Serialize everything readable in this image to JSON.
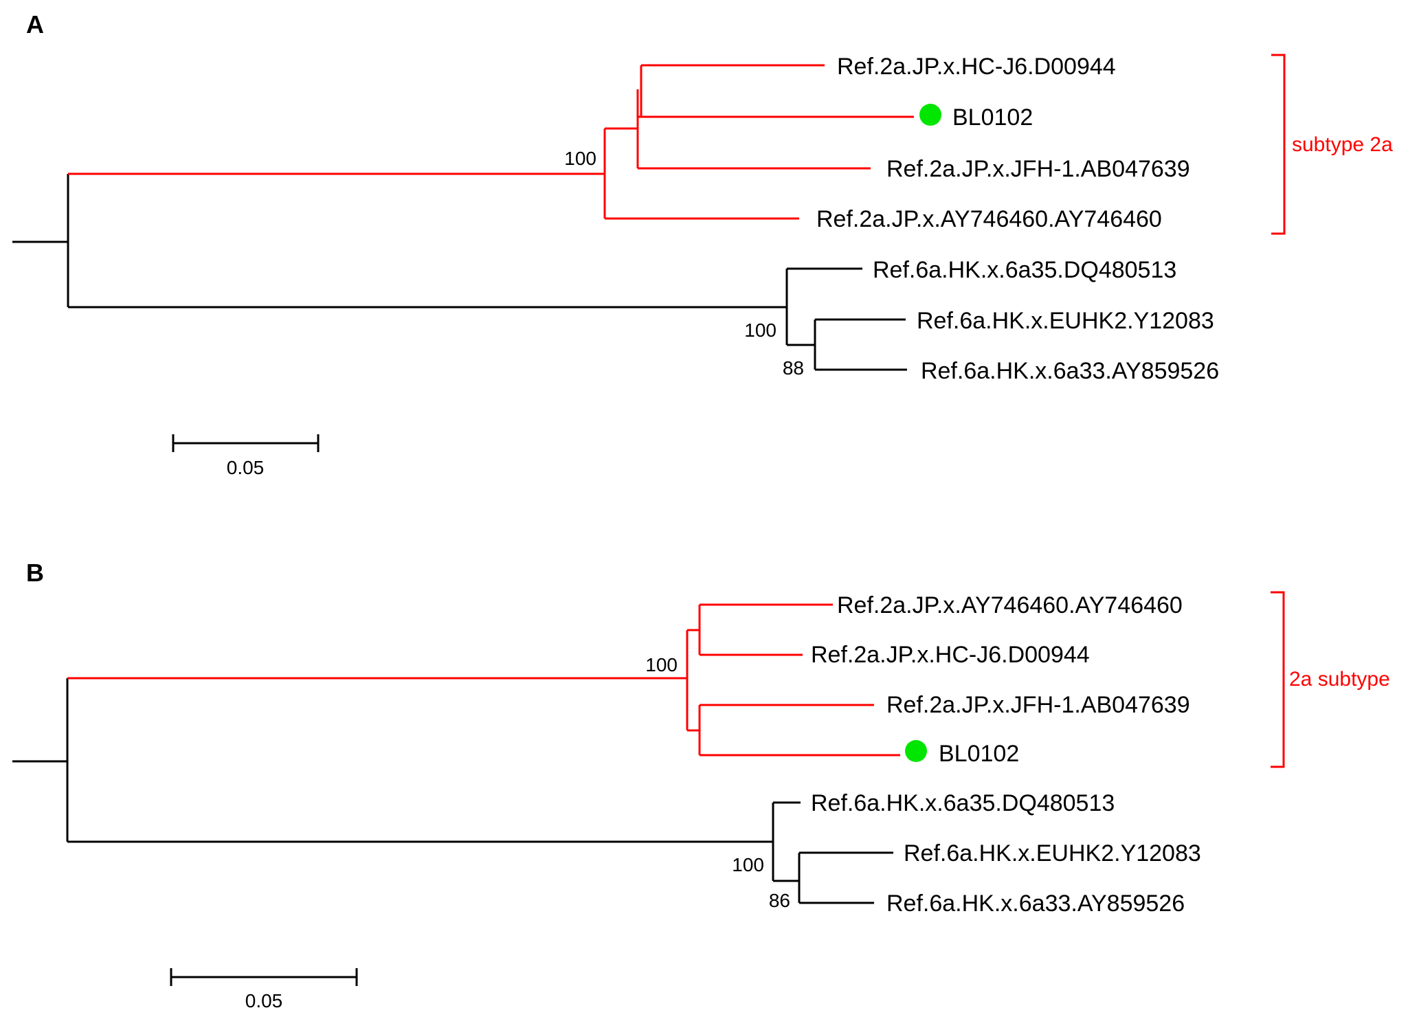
{
  "colors": {
    "highlight": "#ff0000",
    "default": "#000000",
    "marker": "#00e600"
  },
  "panels": [
    {
      "label": "A",
      "taxa": [
        "Ref.2a.JP.x.HC-J6.D00944",
        "BL0102",
        "Ref.2a.JP.x.JFH-1.AB047639",
        "Ref.2a.JP.x.AY746460.AY746460",
        "Ref.6a.HK.x.6a35.DQ480513",
        "Ref.6a.HK.x.EUHK2.Y12083",
        "Ref.6a.HK.x.6a33.AY859526"
      ],
      "bootstrap": [
        "100",
        "100",
        "88"
      ],
      "clade_label": "subtype 2a",
      "scale_label": "0.05",
      "marker_icon": "green-circle-icon"
    },
    {
      "label": "B",
      "taxa": [
        "Ref.2a.JP.x.AY746460.AY746460",
        "Ref.2a.JP.x.HC-J6.D00944",
        "Ref.2a.JP.x.JFH-1.AB047639",
        "BL0102",
        "Ref.6a.HK.x.6a35.DQ480513",
        "Ref.6a.HK.x.EUHK2.Y12083",
        "Ref.6a.HK.x.6a33.AY859526"
      ],
      "bootstrap": [
        "100",
        "100",
        "86"
      ],
      "clade_label": "2a subtype",
      "scale_label": "0.05",
      "marker_icon": "green-circle-icon"
    }
  ]
}
